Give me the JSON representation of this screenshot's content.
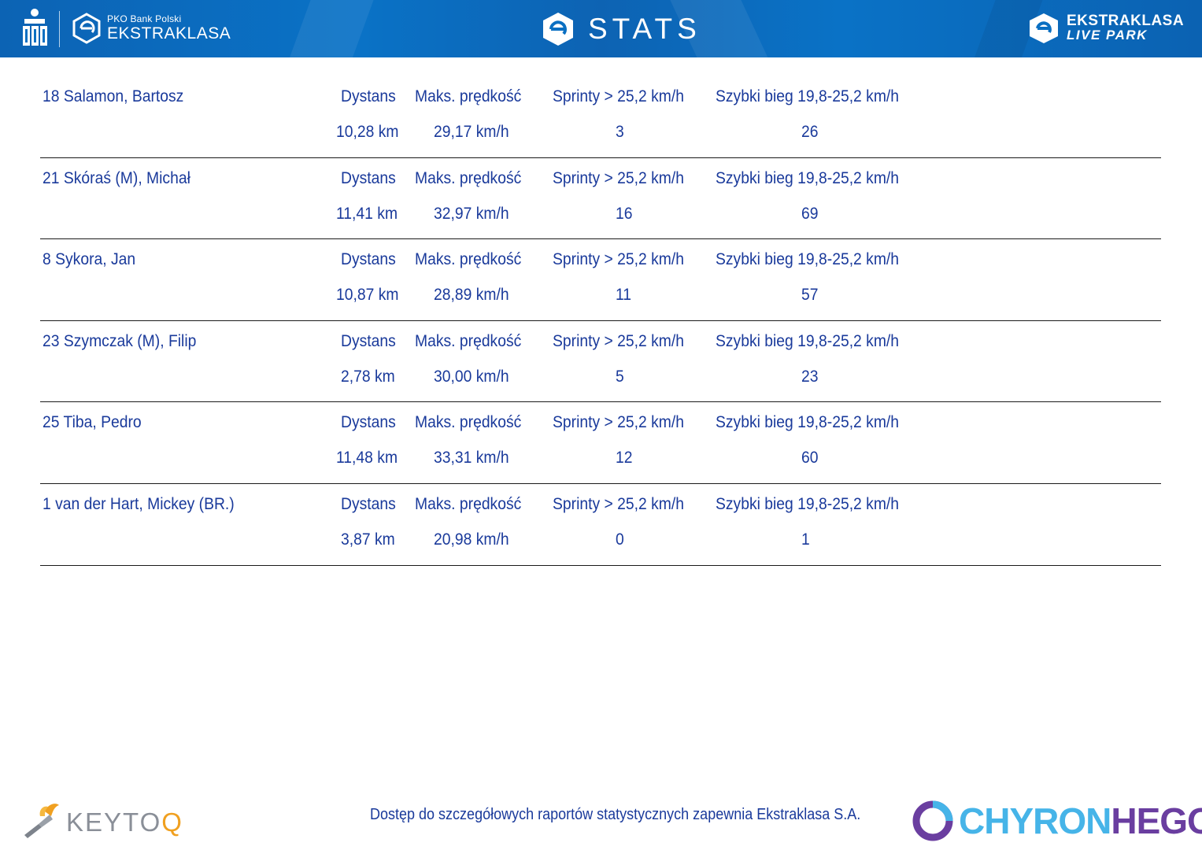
{
  "header": {
    "sponsor_small": "PKO Bank Polski",
    "league_name": "EKSTRAKLASA",
    "title": "STATS",
    "live_park_line1": "EKSTRAKLASA",
    "live_park_line2": "LIVE PARK",
    "colors": {
      "bar": "#0a6fc2",
      "text": "#ffffff"
    }
  },
  "labels": {
    "distance": "Dystans",
    "max_speed": "Maks. prędkość",
    "sprints": "Sprinty > 25,2 km/h",
    "fast_run": "Szybki bieg 19,8-25,2 km/h"
  },
  "players": [
    {
      "name": "18  Salamon, Bartosz",
      "distance": "10,28 km",
      "max_speed": "29,17 km/h",
      "sprints": "3",
      "fast_run": "26"
    },
    {
      "name": "21  Skóraś (M), Michał",
      "distance": "11,41 km",
      "max_speed": "32,97 km/h",
      "sprints": "16",
      "fast_run": "69"
    },
    {
      "name": "8  Sykora, Jan",
      "distance": "10,87 km",
      "max_speed": "28,89 km/h",
      "sprints": "11",
      "fast_run": "57"
    },
    {
      "name": "23  Szymczak (M), Filip",
      "distance": "2,78 km",
      "max_speed": "30,00 km/h",
      "sprints": "5",
      "fast_run": "23"
    },
    {
      "name": "25  Tiba, Pedro",
      "distance": "11,48 km",
      "max_speed": "33,31 km/h",
      "sprints": "12",
      "fast_run": "60"
    },
    {
      "name": "1  van der Hart, Mickey (BR.)",
      "distance": "3,87 km",
      "max_speed": "20,98 km/h",
      "sprints": "0",
      "fast_run": "1"
    }
  ],
  "footer": {
    "note": "Dostęp do szczegółowych raportów statystycznych zapewnia Ekstraklasa S.A.",
    "keytoq_text_main": "KEYTO",
    "keytoq_text_accent": "Q",
    "chyron_part1": "CHYRON",
    "chyron_part2": "HEGO"
  },
  "colors": {
    "text": "#1a3a9b",
    "rule": "#1a1a1a"
  }
}
